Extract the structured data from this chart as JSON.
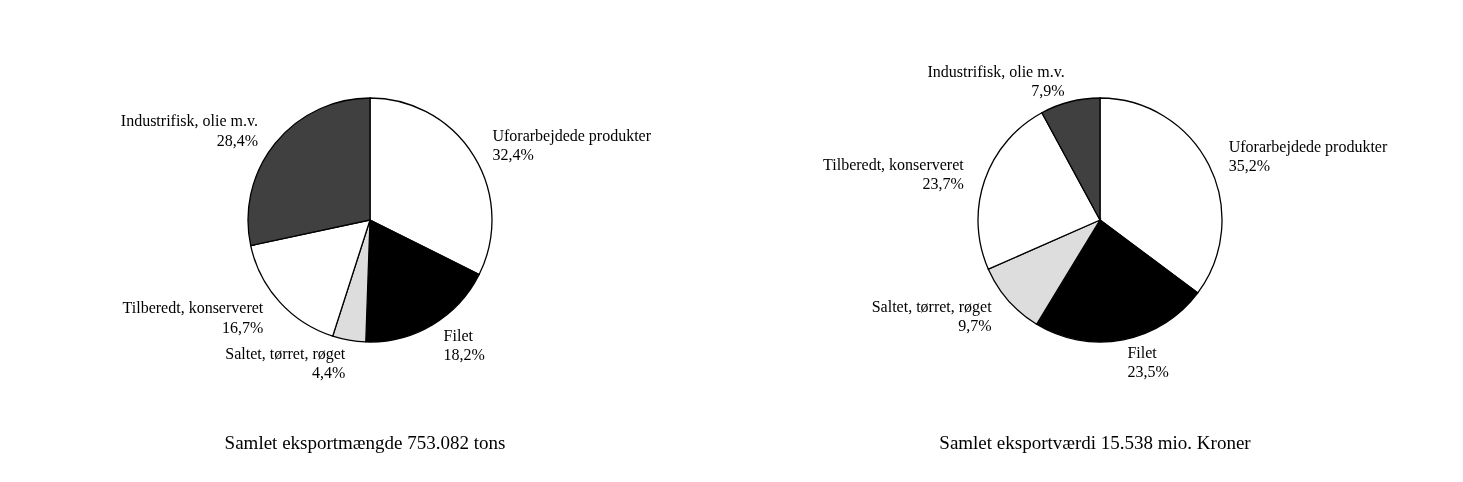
{
  "chart_data": [
    {
      "type": "pie",
      "title": "Samlet eksportmængde 753.082 tons",
      "categories": [
        "Uforarbejdede produkter",
        "Filet",
        "Saltet, tørret, røget",
        "Tilberedt, konserveret",
        "Industrifisk, olie m.v."
      ],
      "values": [
        32.4,
        18.2,
        4.4,
        16.7,
        28.4
      ],
      "value_labels": [
        "32,4%",
        "18,2%",
        "4,4%",
        "16,7%",
        "28,4%"
      ],
      "colors": [
        "#ffffff",
        "#000000",
        "#dddddd",
        "#ffffff",
        "#404040"
      ]
    },
    {
      "type": "pie",
      "title": "Samlet eksportværdi 15.538 mio. Kroner",
      "categories": [
        "Uforarbejdede produkter",
        "Filet",
        "Saltet, tørret, røget",
        "Tilberedt, konserveret",
        "Industrifisk, olie m.v."
      ],
      "values": [
        35.2,
        23.5,
        9.7,
        23.7,
        7.9
      ],
      "value_labels": [
        "35,2%",
        "23,5%",
        "9,7%",
        "23,7%",
        "7,9%"
      ],
      "colors": [
        "#ffffff",
        "#000000",
        "#dddddd",
        "#ffffff",
        "#404040"
      ]
    }
  ]
}
